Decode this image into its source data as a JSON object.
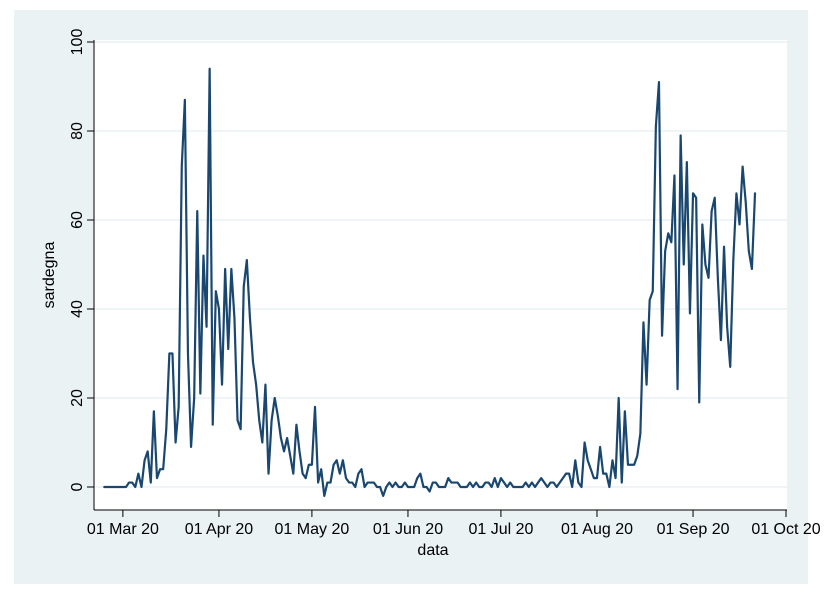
{
  "chart_data": {
    "type": "line",
    "title": "",
    "xlabel": "data",
    "ylabel": "sardegna",
    "x_start_date": "2020-02-24",
    "x_step_days": 1,
    "xlim": [
      "2020-02-21",
      "2020-10-01"
    ],
    "ylim": [
      -5,
      100
    ],
    "x_ticks": [
      {
        "date": "2020-03-01",
        "label": "01 Mar 20"
      },
      {
        "date": "2020-04-01",
        "label": "01 Apr 20"
      },
      {
        "date": "2020-05-01",
        "label": "01 May 20"
      },
      {
        "date": "2020-06-01",
        "label": "01 Jun 20"
      },
      {
        "date": "2020-07-01",
        "label": "01 Jul 20"
      },
      {
        "date": "2020-08-01",
        "label": "01 Aug 20"
      },
      {
        "date": "2020-09-01",
        "label": "01 Sep 20"
      },
      {
        "date": "2020-10-01",
        "label": "01 Oct 20"
      }
    ],
    "y_ticks": [
      0,
      20,
      40,
      60,
      80,
      100
    ],
    "grid": true,
    "legend": "none",
    "series": [
      {
        "name": "",
        "color": "#1a476f",
        "values": [
          0,
          0,
          0,
          0,
          0,
          0,
          0,
          0,
          1,
          1,
          0,
          3,
          0,
          6,
          8,
          1,
          17,
          2,
          4,
          4,
          13,
          30,
          30,
          10,
          18,
          72,
          87,
          30,
          9,
          20,
          62,
          21,
          52,
          36,
          94,
          14,
          44,
          40,
          23,
          49,
          31,
          49,
          38,
          15,
          13,
          45,
          51,
          38,
          28,
          23,
          15,
          10,
          23,
          3,
          15,
          20,
          16,
          11,
          8,
          11,
          7,
          3,
          14,
          8,
          3,
          2,
          5,
          5,
          18,
          1,
          4,
          -2,
          1,
          1,
          5,
          6,
          3,
          6,
          2,
          1,
          1,
          0,
          3,
          4,
          0,
          1,
          1,
          1,
          0,
          0,
          -2,
          0,
          1,
          0,
          1,
          0,
          0,
          1,
          0,
          0,
          0,
          2,
          3,
          0,
          0,
          -1,
          1,
          1,
          0,
          0,
          0,
          2,
          1,
          1,
          1,
          0,
          0,
          0,
          1,
          0,
          1,
          0,
          0,
          1,
          1,
          0,
          2,
          0,
          2,
          1,
          0,
          1,
          0,
          0,
          0,
          0,
          1,
          0,
          1,
          0,
          1,
          2,
          1,
          0,
          1,
          1,
          0,
          1,
          2,
          3,
          3,
          0,
          6,
          1,
          0,
          10,
          6,
          4,
          2,
          2,
          9,
          3,
          3,
          0,
          6,
          2,
          20,
          1,
          17,
          5,
          5,
          5,
          7,
          12,
          37,
          23,
          42,
          44,
          81,
          91,
          34,
          53,
          57,
          55,
          70,
          22,
          79,
          50,
          73,
          39,
          66,
          65,
          19,
          59,
          50,
          47,
          62,
          65,
          47,
          33,
          54,
          36,
          27,
          51,
          66,
          59,
          72,
          64,
          53,
          49,
          66
        ]
      }
    ]
  }
}
